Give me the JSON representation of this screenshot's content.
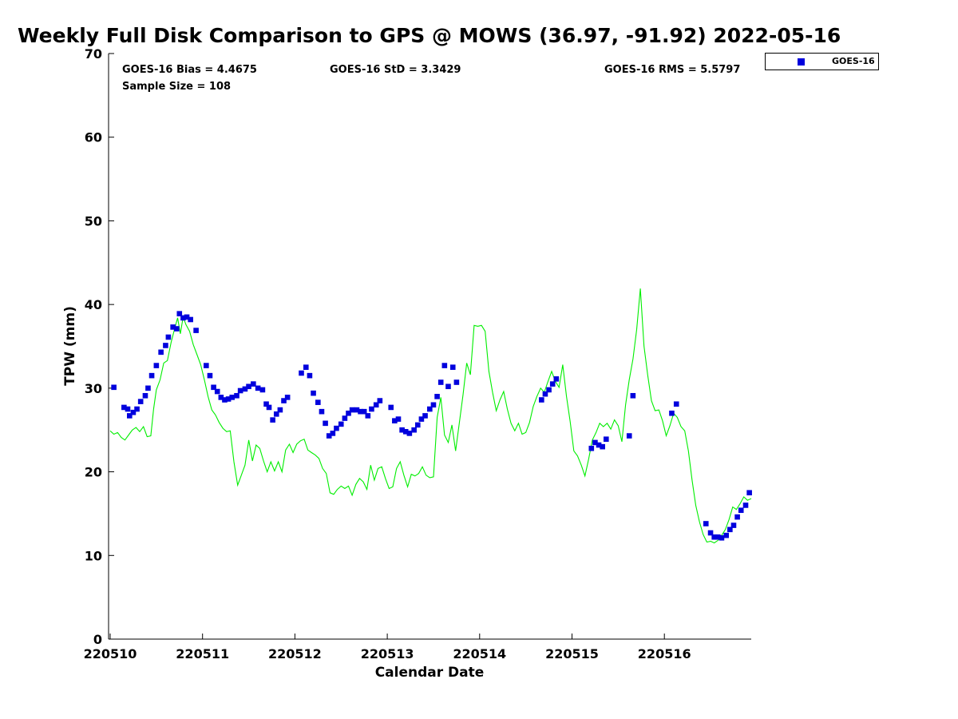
{
  "chart_data": {
    "type": "scatter",
    "title": "Weekly Full Disk Comparison to GPS @ MOWS (36.97, -91.92) 2022-05-16",
    "xlabel": "Calendar Date",
    "ylabel": "TPW (mm)",
    "xlim": [
      0,
      6.95
    ],
    "ylim": [
      0,
      70
    ],
    "x_ticks": [
      0,
      1,
      2,
      3,
      4,
      5,
      6
    ],
    "x_tick_labels": [
      "220510",
      "220511",
      "220512",
      "220513",
      "220514",
      "220515",
      "220516"
    ],
    "y_ticks": [
      0,
      10,
      20,
      30,
      40,
      50,
      60,
      70
    ],
    "y_tick_labels": [
      "0",
      "10",
      "20",
      "30",
      "40",
      "50",
      "60",
      "70"
    ],
    "x_unit_note": "days",
    "grid": false,
    "legend_position": "top-right, outside plot",
    "stats": {
      "bias": "GOES-16 Bias = 4.4675",
      "std": "GOES-16 StD = 3.3429",
      "rms": "GOES-16 RMS = 5.5797",
      "sample_size": "Sample Size = 108"
    },
    "series": [
      {
        "name": "GOES-16",
        "kind": "scatter",
        "marker": "square",
        "color": "#0000dd",
        "x": [
          0.04,
          0.15,
          0.19,
          0.21,
          0.25,
          0.29,
          0.33,
          0.38,
          0.41,
          0.45,
          0.5,
          0.55,
          0.6,
          0.63,
          0.68,
          0.72,
          0.75,
          0.79,
          0.83,
          0.87,
          0.93,
          1.04,
          1.08,
          1.12,
          1.16,
          1.2,
          1.24,
          1.28,
          1.32,
          1.37,
          1.41,
          1.46,
          1.5,
          1.55,
          1.6,
          1.65,
          1.69,
          1.72,
          1.76,
          1.8,
          1.84,
          1.88,
          1.92,
          2.07,
          2.12,
          2.16,
          2.2,
          2.25,
          2.29,
          2.33,
          2.37,
          2.41,
          2.45,
          2.5,
          2.54,
          2.58,
          2.62,
          2.67,
          2.71,
          2.75,
          2.79,
          2.83,
          2.88,
          2.92,
          3.04,
          3.08,
          3.12,
          3.16,
          3.2,
          3.24,
          3.29,
          3.33,
          3.37,
          3.41,
          3.46,
          3.5,
          3.54,
          3.58,
          3.62,
          3.66,
          3.71,
          3.75,
          4.67,
          4.71,
          4.75,
          4.79,
          4.83,
          5.21,
          5.25,
          5.29,
          5.33,
          5.37,
          5.62,
          5.66,
          6.08,
          6.13,
          6.45,
          6.5,
          6.54,
          6.58,
          6.62,
          6.67,
          6.71,
          6.75,
          6.79,
          6.83,
          6.88,
          6.92
        ],
        "y": [
          30.1,
          27.7,
          27.5,
          26.7,
          27.1,
          27.5,
          28.4,
          29.1,
          30.0,
          31.5,
          32.7,
          34.3,
          35.1,
          36.1,
          37.3,
          37.1,
          38.9,
          38.4,
          38.5,
          38.2,
          36.9,
          32.7,
          31.5,
          30.1,
          29.6,
          28.9,
          28.6,
          28.7,
          28.9,
          29.1,
          29.7,
          29.9,
          30.2,
          30.5,
          30.0,
          29.8,
          28.1,
          27.7,
          26.2,
          26.9,
          27.4,
          28.5,
          28.9,
          31.8,
          32.5,
          31.5,
          29.4,
          28.3,
          27.2,
          25.8,
          24.3,
          24.6,
          25.2,
          25.7,
          26.4,
          27.0,
          27.4,
          27.4,
          27.2,
          27.2,
          26.7,
          27.5,
          28.0,
          28.5,
          27.7,
          26.1,
          26.3,
          25.0,
          24.8,
          24.6,
          25.0,
          25.6,
          26.3,
          26.7,
          27.5,
          28.0,
          29.0,
          30.7,
          32.7,
          30.2,
          32.5,
          30.7,
          28.6,
          29.3,
          29.8,
          30.5,
          31.1,
          22.8,
          23.5,
          23.2,
          23.0,
          23.9,
          24.3,
          29.1,
          27.0,
          28.1,
          13.8,
          12.7,
          12.2,
          12.2,
          12.1,
          12.4,
          13.1,
          13.6,
          14.6,
          15.4,
          16.0,
          17.5
        ]
      },
      {
        "kind": "line",
        "color": "#00ee00",
        "x": [
          0.0,
          0.04,
          0.08,
          0.12,
          0.16,
          0.2,
          0.24,
          0.28,
          0.32,
          0.36,
          0.4,
          0.44,
          0.47,
          0.5,
          0.54,
          0.58,
          0.62,
          0.66,
          0.7,
          0.73,
          0.76,
          0.79,
          0.82,
          0.86,
          0.9,
          0.94,
          0.98,
          1.02,
          1.06,
          1.1,
          1.14,
          1.18,
          1.22,
          1.26,
          1.3,
          1.34,
          1.38,
          1.42,
          1.46,
          1.5,
          1.54,
          1.58,
          1.62,
          1.66,
          1.7,
          1.74,
          1.78,
          1.82,
          1.86,
          1.9,
          1.94,
          1.98,
          2.02,
          2.06,
          2.1,
          2.14,
          2.18,
          2.22,
          2.26,
          2.3,
          2.34,
          2.38,
          2.42,
          2.46,
          2.5,
          2.54,
          2.58,
          2.62,
          2.66,
          2.7,
          2.74,
          2.78,
          2.82,
          2.86,
          2.9,
          2.94,
          2.98,
          3.02,
          3.06,
          3.1,
          3.14,
          3.18,
          3.22,
          3.26,
          3.3,
          3.34,
          3.38,
          3.42,
          3.46,
          3.5,
          3.54,
          3.58,
          3.62,
          3.66,
          3.7,
          3.74,
          3.78,
          3.82,
          3.86,
          3.9,
          3.94,
          3.98,
          4.02,
          4.06,
          4.1,
          4.14,
          4.18,
          4.22,
          4.26,
          4.3,
          4.34,
          4.38,
          4.42,
          4.46,
          4.5,
          4.54,
          4.58,
          4.62,
          4.66,
          4.7,
          4.74,
          4.78,
          4.82,
          4.86,
          4.9,
          4.94,
          4.98,
          5.02,
          5.06,
          5.1,
          5.14,
          5.18,
          5.22,
          5.26,
          5.3,
          5.34,
          5.38,
          5.42,
          5.46,
          5.5,
          5.54,
          5.58,
          5.62,
          5.66,
          5.7,
          5.74,
          5.78,
          5.82,
          5.86,
          5.9,
          5.94,
          5.98,
          6.02,
          6.06,
          6.1,
          6.14,
          6.18,
          6.22,
          6.26,
          6.3,
          6.34,
          6.38,
          6.42,
          6.46,
          6.5,
          6.54,
          6.58,
          6.62,
          6.66,
          6.7,
          6.74,
          6.78,
          6.82,
          6.86,
          6.9,
          6.94
        ],
        "y": [
          24.9,
          24.5,
          24.7,
          24.1,
          23.8,
          24.4,
          25.0,
          25.3,
          24.8,
          25.4,
          24.2,
          24.3,
          27.5,
          29.8,
          31.0,
          33.0,
          33.3,
          35.5,
          37.2,
          38.4,
          36.5,
          38.5,
          37.6,
          36.8,
          35.2,
          34.0,
          32.8,
          31.0,
          29.0,
          27.4,
          26.8,
          25.9,
          25.2,
          24.8,
          24.9,
          21.2,
          18.4,
          19.6,
          20.8,
          23.8,
          21.3,
          23.2,
          22.8,
          21.3,
          20.0,
          21.2,
          20.1,
          21.2,
          20.0,
          22.6,
          23.3,
          22.3,
          23.3,
          23.7,
          23.9,
          22.6,
          22.3,
          22.0,
          21.6,
          20.4,
          19.8,
          17.5,
          17.3,
          17.9,
          18.3,
          18.0,
          18.3,
          17.2,
          18.5,
          19.2,
          18.8,
          17.9,
          20.8,
          19.0,
          20.4,
          20.6,
          19.2,
          18.0,
          18.2,
          20.4,
          21.2,
          19.6,
          18.2,
          19.7,
          19.5,
          19.8,
          20.6,
          19.6,
          19.3,
          19.4,
          26.5,
          28.9,
          24.4,
          23.5,
          25.6,
          22.5,
          25.8,
          29.2,
          33.0,
          31.6,
          37.5,
          37.4,
          37.5,
          36.8,
          32.0,
          29.5,
          27.3,
          28.6,
          29.6,
          27.5,
          25.8,
          24.9,
          25.8,
          24.5,
          24.7,
          25.9,
          27.8,
          29.0,
          30.0,
          29.5,
          30.8,
          32.0,
          30.8,
          30.1,
          32.8,
          29.0,
          26.0,
          22.5,
          21.9,
          20.8,
          19.5,
          21.5,
          23.8,
          24.7,
          25.8,
          25.4,
          25.8,
          25.1,
          26.2,
          25.5,
          23.6,
          28.0,
          31.0,
          33.5,
          37.0,
          41.9,
          35.0,
          31.5,
          28.5,
          27.3,
          27.4,
          26.1,
          24.3,
          25.5,
          27.0,
          26.5,
          25.4,
          24.9,
          22.5,
          19.0,
          16.0,
          14.0,
          12.5,
          11.6,
          11.7,
          11.5,
          11.8,
          12.4,
          13.1,
          14.3,
          15.8,
          15.5,
          16.2,
          17.0,
          16.6,
          16.8
        ]
      }
    ]
  }
}
